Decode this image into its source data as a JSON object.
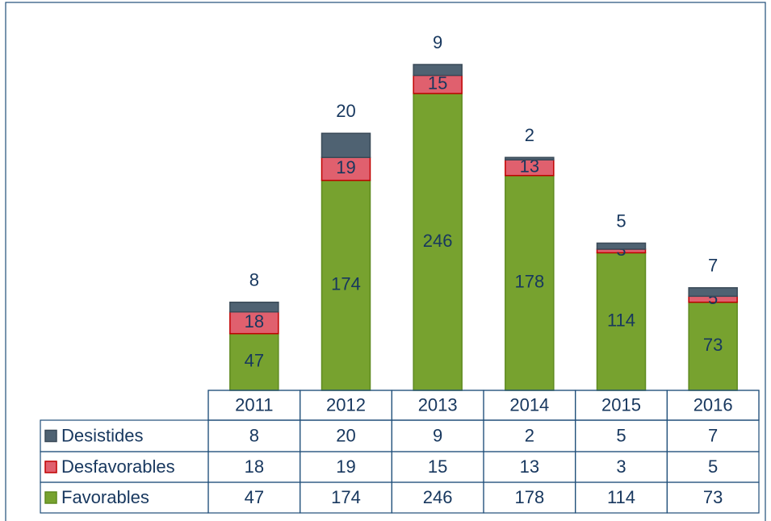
{
  "chart_data": {
    "type": "bar",
    "stacked": true,
    "categories": [
      "2011",
      "2012",
      "2013",
      "2014",
      "2015",
      "2016"
    ],
    "series": [
      {
        "name": "Desistides",
        "color": "#4f6272",
        "values": [
          8,
          20,
          9,
          2,
          5,
          7
        ]
      },
      {
        "name": "Desfavorables",
        "color": "#e0606e",
        "values": [
          18,
          19,
          15,
          13,
          3,
          5
        ]
      },
      {
        "name": "Favorables",
        "color": "#77a22f",
        "values": [
          47,
          174,
          246,
          178,
          114,
          73
        ]
      }
    ]
  }
}
